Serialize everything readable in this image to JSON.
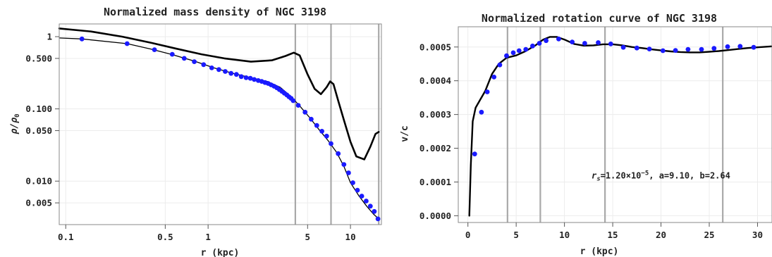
{
  "chart_data": [
    {
      "type": "line",
      "title": "Normalized mass density of NGC 3198",
      "xlabel": "r (kpc)",
      "ylabel": "ρ/ρ0",
      "xscale": "log",
      "yscale": "log",
      "xlim": [
        0.09,
        16.5
      ],
      "ylim": [
        0.0025,
        1.5
      ],
      "xticks": [
        {
          "value": 0.1,
          "label": "0.1"
        },
        {
          "value": 0.5,
          "label": "0.5"
        },
        {
          "value": 1,
          "label": "1"
        },
        {
          "value": 5,
          "label": "5"
        },
        {
          "value": 10,
          "label": "10"
        }
      ],
      "yticks": [
        {
          "value": 1,
          "label": "1"
        },
        {
          "value": 0.5,
          "label": "0.500"
        },
        {
          "value": 0.1,
          "label": "0.100"
        },
        {
          "value": 0.05,
          "label": "0.050"
        },
        {
          "value": 0.01,
          "label": "0.010"
        },
        {
          "value": 0.005,
          "label": "0.005"
        }
      ],
      "grid": true,
      "vertical_lines": [
        4.1,
        7.3,
        15.8
      ],
      "series": [
        {
          "style": "line",
          "color": "#000000",
          "x": [
            0.09,
            0.15,
            0.25,
            0.4,
            0.6,
            0.9,
            1.3,
            2.0,
            2.8,
            3.5,
            4.0,
            4.4,
            5.0,
            5.6,
            6.2,
            6.8,
            7.2,
            7.6,
            8.2,
            9.0,
            10.0,
            11.0,
            12.5,
            13.8,
            15.0,
            15.8
          ],
          "y": [
            1.3,
            1.18,
            1.0,
            0.82,
            0.68,
            0.57,
            0.5,
            0.45,
            0.47,
            0.54,
            0.6,
            0.55,
            0.3,
            0.19,
            0.16,
            0.2,
            0.24,
            0.22,
            0.13,
            0.07,
            0.035,
            0.022,
            0.02,
            0.03,
            0.045,
            0.048
          ]
        },
        {
          "style": "line",
          "color": "#000000",
          "x": [
            0.09,
            0.13,
            0.27,
            0.4,
            0.55,
            0.8,
            1.1,
            1.5,
            2.0,
            2.6,
            3.2,
            3.8,
            4.4,
            5.2,
            6.0,
            7.0,
            8.0,
            9.0,
            10.0,
            11.5,
            13.0,
            14.5,
            15.8
          ],
          "y": [
            0.96,
            0.93,
            0.8,
            0.67,
            0.57,
            0.46,
            0.37,
            0.31,
            0.27,
            0.24,
            0.2,
            0.15,
            0.11,
            0.075,
            0.052,
            0.036,
            0.025,
            0.016,
            0.0095,
            0.0062,
            0.0045,
            0.0035,
            0.003
          ]
        },
        {
          "style": "markers",
          "color": "#1a1aff",
          "x": [
            0.13,
            0.27,
            0.42,
            0.56,
            0.68,
            0.8,
            0.93,
            1.06,
            1.19,
            1.32,
            1.45,
            1.58,
            1.71,
            1.85,
            1.98,
            2.11,
            2.25,
            2.38,
            2.51,
            2.64,
            2.77,
            2.91,
            3.04,
            3.17,
            3.3,
            3.43,
            3.57,
            3.7,
            3.83,
            3.96,
            4.3,
            4.8,
            5.3,
            5.8,
            6.3,
            6.8,
            7.3,
            8.2,
            9.0,
            9.7,
            10.4,
            11.2,
            12.0,
            12.9,
            13.8,
            14.7,
            15.6
          ],
          "y": [
            0.93,
            0.8,
            0.66,
            0.57,
            0.5,
            0.45,
            0.41,
            0.37,
            0.35,
            0.33,
            0.31,
            0.3,
            0.28,
            0.27,
            0.265,
            0.255,
            0.247,
            0.24,
            0.232,
            0.225,
            0.215,
            0.206,
            0.196,
            0.185,
            0.175,
            0.165,
            0.156,
            0.147,
            0.14,
            0.13,
            0.112,
            0.09,
            0.072,
            0.059,
            0.049,
            0.042,
            0.033,
            0.024,
            0.017,
            0.013,
            0.0095,
            0.0075,
            0.0062,
            0.0053,
            0.0045,
            0.0038,
            0.003
          ]
        }
      ]
    },
    {
      "type": "line",
      "title": "Normalized rotation curve of NGC 3198",
      "xlabel": "r (kpc)",
      "ylabel": "v/c",
      "xlim": [
        -1,
        31.5
      ],
      "ylim": [
        -2e-05,
        0.00056
      ],
      "xticks": [
        {
          "value": 0,
          "label": "0"
        },
        {
          "value": 5,
          "label": "5"
        },
        {
          "value": 10,
          "label": "10"
        },
        {
          "value": 15,
          "label": "15"
        },
        {
          "value": 20,
          "label": "20"
        },
        {
          "value": 25,
          "label": "25"
        },
        {
          "value": 30,
          "label": "30"
        }
      ],
      "yticks": [
        {
          "value": 0,
          "label": "0.0000"
        },
        {
          "value": 0.0001,
          "label": "0.0001"
        },
        {
          "value": 0.0002,
          "label": "0.0002"
        },
        {
          "value": 0.0003,
          "label": "0.0003"
        },
        {
          "value": 0.0004,
          "label": "0.0004"
        },
        {
          "value": 0.0005,
          "label": "0.0005"
        }
      ],
      "grid": true,
      "vertical_lines": [
        4.1,
        7.5,
        14.2,
        26.4
      ],
      "annotation": {
        "text": "rs=1.20×10−5, a=9.10, b=2.64",
        "rs": "1.20",
        "rs_power": "−5",
        "a": "9.10",
        "b": "2.64",
        "x": 12.8,
        "y": 0.00011
      },
      "series": [
        {
          "style": "line",
          "color": "#000000",
          "x": [
            0.15,
            0.3,
            0.5,
            0.8,
            1.2,
            1.8,
            2.5,
            3.2,
            4.0,
            5.0,
            6.0,
            7.0,
            7.8,
            8.5,
            9.2,
            10.0,
            11.0,
            12.0,
            13.0,
            14.0,
            15.0,
            16.0,
            17.0,
            18.0,
            19.0,
            20.0,
            21.0,
            22.0,
            23.0,
            24.0,
            25.0,
            26.0,
            27.0,
            28.0,
            29.0,
            30.0,
            31.5
          ],
          "y": [
            0.0,
            0.00015,
            0.00028,
            0.00032,
            0.00034,
            0.00037,
            0.00042,
            0.00045,
            0.000468,
            0.000475,
            0.000488,
            0.000505,
            0.000522,
            0.00053,
            0.00053,
            0.000522,
            0.000509,
            0.000504,
            0.000505,
            0.000508,
            0.000508,
            0.000505,
            0.0005,
            0.000497,
            0.000493,
            0.00049,
            0.000487,
            0.000485,
            0.000484,
            0.000484,
            0.000486,
            0.000488,
            0.000491,
            0.000494,
            0.000497,
            0.000499,
            0.000502
          ]
        },
        {
          "style": "markers",
          "color": "#1a1aff",
          "x": [
            0.7,
            1.4,
            2.0,
            2.7,
            3.3,
            4.0,
            4.7,
            5.3,
            6.0,
            6.7,
            7.4,
            8.1,
            9.4,
            10.8,
            12.1,
            13.5,
            14.8,
            16.1,
            17.5,
            18.8,
            20.2,
            21.5,
            22.8,
            24.2,
            25.5,
            26.9,
            28.2,
            29.6
          ],
          "y": [
            0.000183,
            0.000307,
            0.000367,
            0.000411,
            0.000447,
            0.000474,
            0.000483,
            0.000489,
            0.000493,
            0.000503,
            0.000511,
            0.000519,
            0.000524,
            0.000515,
            0.000511,
            0.000513,
            0.000509,
            0.000499,
            0.000497,
            0.000494,
            0.000489,
            0.00049,
            0.000493,
            0.000493,
            0.000496,
            0.000501,
            0.000502,
            0.000499
          ]
        }
      ]
    }
  ]
}
